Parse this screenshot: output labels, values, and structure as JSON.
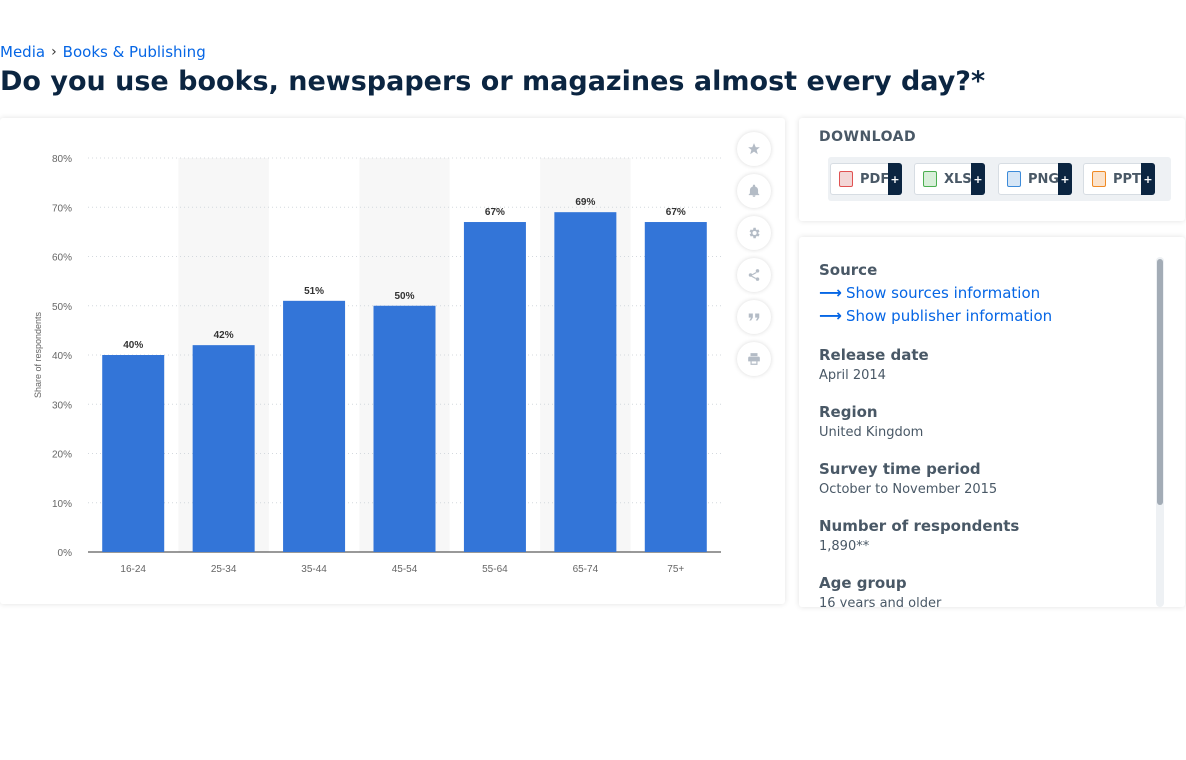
{
  "breadcrumb": {
    "items": [
      "Media",
      "Books & Publishing"
    ],
    "separator": "›"
  },
  "title": "Do you use books, newspapers or magazines almost every day?*",
  "chart_data": {
    "type": "bar",
    "categories": [
      "16-24",
      "25-34",
      "35-44",
      "45-54",
      "55-64",
      "65-74",
      "75+"
    ],
    "values": [
      40,
      42,
      51,
      50,
      67,
      69,
      67
    ],
    "data_labels": [
      "40%",
      "42%",
      "51%",
      "50%",
      "67%",
      "69%",
      "67%"
    ],
    "ylabel": "Share of respondents",
    "ylim": [
      0,
      80
    ],
    "yticks": [
      "0%",
      "10%",
      "20%",
      "30%",
      "40%",
      "50%",
      "60%",
      "70%",
      "80%"
    ],
    "grid": true,
    "bar_color": "#3375d8",
    "alt_band_color": "#f7f7f7"
  },
  "tools": {
    "icons": [
      "star-icon",
      "bell-icon",
      "gear-icon",
      "share-icon",
      "quote-icon",
      "print-icon"
    ]
  },
  "download": {
    "title": "DOWNLOAD",
    "buttons": [
      {
        "label": "PDF",
        "icon_color": "#e05252"
      },
      {
        "label": "XLS",
        "icon_color": "#4caf50"
      },
      {
        "label": "PNG",
        "icon_color": "#3d8bd9"
      },
      {
        "label": "PPT",
        "icon_color": "#f08a24"
      }
    ],
    "plus": "+"
  },
  "details": {
    "source_label": "Source",
    "show_sources": "Show sources information",
    "show_publisher": "Show publisher information",
    "release_date_label": "Release date",
    "release_date": "April 2014",
    "region_label": "Region",
    "region": "United Kingdom",
    "survey_period_label": "Survey time period",
    "survey_period": "October to November 2015",
    "respondents_label": "Number of respondents",
    "respondents": "1,890**",
    "age_group_label": "Age group",
    "age_group": "16 years and older"
  },
  "colors": {
    "accent": "#0666e5",
    "heading": "#0b2541"
  }
}
